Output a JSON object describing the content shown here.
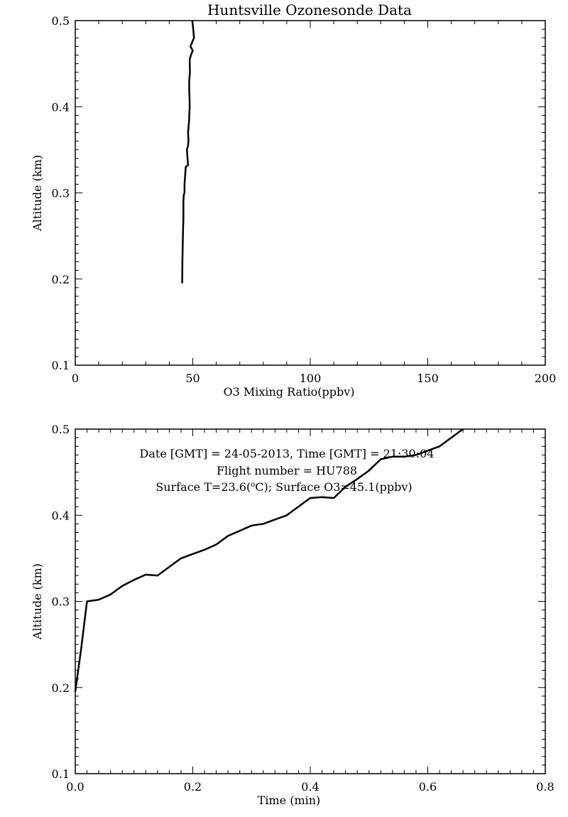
{
  "figure_title": "Huntsville Ozonesonde Data",
  "chart_data": [
    {
      "type": "line",
      "title": "Huntsville Ozonesonde Data",
      "xlabel": "O3 Mixing Ratio(ppbv)",
      "ylabel": "Altitude (km)",
      "xlim": [
        0,
        200
      ],
      "ylim": [
        0.1,
        0.5
      ],
      "x_ticks": [
        "0",
        "50",
        "100",
        "150",
        "200"
      ],
      "y_ticks": [
        "0.1",
        "0.2",
        "0.3",
        "0.4",
        "0.5"
      ],
      "grid": false,
      "series": [
        {
          "x": [
            45.5,
            45.6,
            45.8,
            46.0,
            46.0,
            46.2,
            46.5,
            46.5,
            47.0,
            47.3,
            48.0,
            47.5,
            48.0,
            48.2,
            48.0,
            48.3,
            48.5,
            48.5,
            48.7,
            48.6,
            48.5,
            48.5,
            48.8,
            48.7,
            49.2,
            50.0,
            49.0,
            50.5,
            50.2,
            49.8
          ],
          "y": [
            0.195,
            0.22,
            0.25,
            0.27,
            0.29,
            0.298,
            0.3,
            0.31,
            0.33,
            0.331,
            0.332,
            0.35,
            0.355,
            0.36,
            0.37,
            0.38,
            0.385,
            0.39,
            0.4,
            0.41,
            0.42,
            0.43,
            0.44,
            0.455,
            0.46,
            0.465,
            0.47,
            0.48,
            0.49,
            0.5
          ]
        }
      ]
    },
    {
      "type": "line",
      "xlabel": "Time (min)",
      "ylabel": "Altitude (km)",
      "xlim": [
        0.0,
        0.8
      ],
      "ylim": [
        0.1,
        0.5
      ],
      "x_ticks": [
        "0.0",
        "0.2",
        "0.4",
        "0.6",
        "0.8"
      ],
      "y_ticks": [
        "0.1",
        "0.2",
        "0.3",
        "0.4",
        "0.5"
      ],
      "grid": false,
      "annotations": [
        "Date [GMT] = 24-05-2013,  Time [GMT] = 21:30:04",
        "Flight number = HU788"
      ],
      "surface_line": {
        "t_prefix": "Surface T=23.6(",
        "degree": "o",
        "t_suffix": "C); Surface O3=45.1(ppbv)"
      },
      "series": [
        {
          "x": [
            0.0,
            0.01,
            0.02,
            0.04,
            0.06,
            0.08,
            0.1,
            0.12,
            0.14,
            0.16,
            0.18,
            0.2,
            0.22,
            0.24,
            0.26,
            0.28,
            0.3,
            0.32,
            0.34,
            0.36,
            0.38,
            0.4,
            0.42,
            0.44,
            0.46,
            0.48,
            0.5,
            0.52,
            0.54,
            0.56,
            0.58,
            0.6,
            0.62,
            0.64,
            0.66
          ],
          "y": [
            0.195,
            0.245,
            0.3,
            0.302,
            0.308,
            0.318,
            0.325,
            0.331,
            0.33,
            0.34,
            0.35,
            0.355,
            0.36,
            0.366,
            0.376,
            0.382,
            0.388,
            0.39,
            0.395,
            0.4,
            0.41,
            0.42,
            0.421,
            0.42,
            0.433,
            0.442,
            0.452,
            0.465,
            0.468,
            0.468,
            0.47,
            0.475,
            0.48,
            0.49,
            0.5
          ]
        }
      ]
    }
  ]
}
